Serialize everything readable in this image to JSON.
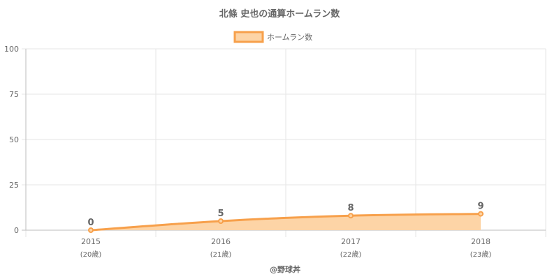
{
  "chart_data": {
    "type": "area",
    "title": "北條 史也の通算ホームラン数",
    "legend": {
      "position": "top",
      "label": "ホームラン数"
    },
    "categories": [
      "2015",
      "2016",
      "2017",
      "2018"
    ],
    "category_sublabels": [
      "(20歳)",
      "(21歳)",
      "(22歳)",
      "(23歳)"
    ],
    "series": [
      {
        "name": "ホームラン数",
        "values": [
          0,
          5,
          8,
          9
        ]
      }
    ],
    "ylim": [
      0,
      100
    ],
    "yticks": [
      "0",
      "25",
      "50",
      "75",
      "100"
    ],
    "grid": true,
    "colors": {
      "line": "#f7a04b",
      "fill": "#fdd4a6"
    },
    "credit": "@野球丼"
  }
}
